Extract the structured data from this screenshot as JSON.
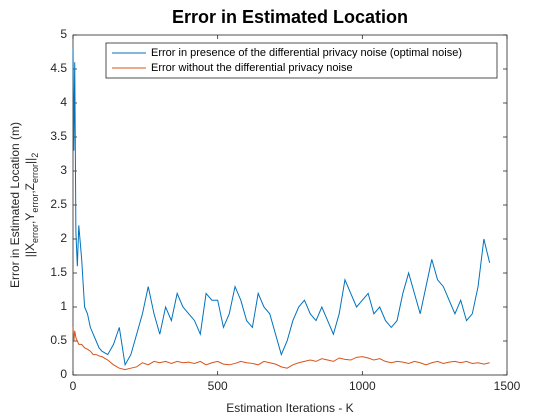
{
  "chart_data": {
    "type": "line",
    "title": "Error in Estimated Location",
    "xlabel": "Estimation Iterations - K",
    "ylabel": [
      "Error in Estimated Location (m)",
      "||X_error,Y_error,Z_error||_2"
    ],
    "x": [
      0,
      3,
      6,
      10,
      15,
      20,
      30,
      40,
      50,
      60,
      70,
      80,
      90,
      100,
      120,
      140,
      160,
      180,
      200,
      220,
      240,
      260,
      280,
      300,
      320,
      340,
      360,
      380,
      400,
      420,
      440,
      460,
      480,
      500,
      520,
      540,
      560,
      580,
      600,
      620,
      640,
      660,
      680,
      700,
      720,
      740,
      760,
      780,
      800,
      820,
      840,
      860,
      880,
      900,
      920,
      940,
      960,
      980,
      1000,
      1020,
      1040,
      1060,
      1080,
      1100,
      1120,
      1140,
      1160,
      1180,
      1200,
      1220,
      1240,
      1260,
      1280,
      1300,
      1320,
      1340,
      1360,
      1380,
      1400,
      1420,
      1440
    ],
    "series": [
      {
        "name": "Error in presence of the differential privacy noise (optimal noise)",
        "color": "#0072bd",
        "values": [
          4.8,
          3.3,
          4.6,
          2.1,
          1.6,
          2.2,
          1.7,
          1.0,
          0.9,
          0.7,
          0.6,
          0.5,
          0.4,
          0.35,
          0.3,
          0.45,
          0.7,
          0.15,
          0.3,
          0.6,
          0.9,
          1.3,
          0.9,
          0.6,
          1.0,
          0.8,
          1.2,
          1.0,
          0.9,
          0.8,
          0.6,
          1.2,
          1.1,
          1.1,
          0.7,
          0.9,
          1.3,
          1.1,
          0.8,
          0.7,
          1.2,
          1.0,
          0.9,
          0.6,
          0.3,
          0.5,
          0.8,
          1.0,
          1.1,
          0.9,
          0.8,
          1.0,
          0.8,
          0.6,
          0.9,
          1.4,
          1.2,
          1.0,
          1.1,
          1.2,
          0.9,
          1.0,
          0.8,
          0.7,
          0.8,
          1.2,
          1.5,
          1.2,
          0.9,
          1.3,
          1.7,
          1.4,
          1.3,
          1.1,
          0.9,
          1.1,
          0.8,
          0.9,
          1.3,
          2.0,
          1.65
        ]
      },
      {
        "name": "Error without the differential privacy noise",
        "color": "#d95319",
        "values": [
          0.7,
          0.5,
          0.65,
          0.55,
          0.5,
          0.45,
          0.45,
          0.4,
          0.38,
          0.35,
          0.3,
          0.3,
          0.28,
          0.27,
          0.22,
          0.15,
          0.1,
          0.08,
          0.1,
          0.12,
          0.18,
          0.15,
          0.2,
          0.18,
          0.2,
          0.17,
          0.2,
          0.18,
          0.19,
          0.17,
          0.2,
          0.15,
          0.18,
          0.2,
          0.16,
          0.15,
          0.17,
          0.2,
          0.18,
          0.17,
          0.15,
          0.2,
          0.18,
          0.16,
          0.12,
          0.1,
          0.15,
          0.18,
          0.2,
          0.22,
          0.2,
          0.24,
          0.22,
          0.2,
          0.25,
          0.23,
          0.22,
          0.26,
          0.27,
          0.25,
          0.22,
          0.24,
          0.2,
          0.18,
          0.2,
          0.19,
          0.17,
          0.2,
          0.18,
          0.15,
          0.18,
          0.2,
          0.17,
          0.19,
          0.2,
          0.18,
          0.2,
          0.17,
          0.18,
          0.16,
          0.18
        ]
      }
    ],
    "xlim": [
      0,
      1500
    ],
    "xticks": [
      0,
      500,
      1000,
      1500
    ],
    "ylim": [
      0,
      5
    ],
    "yticks": [
      0,
      0.5,
      1,
      1.5,
      2,
      2.5,
      3,
      3.5,
      4,
      4.5,
      5
    ],
    "legend": "north"
  }
}
